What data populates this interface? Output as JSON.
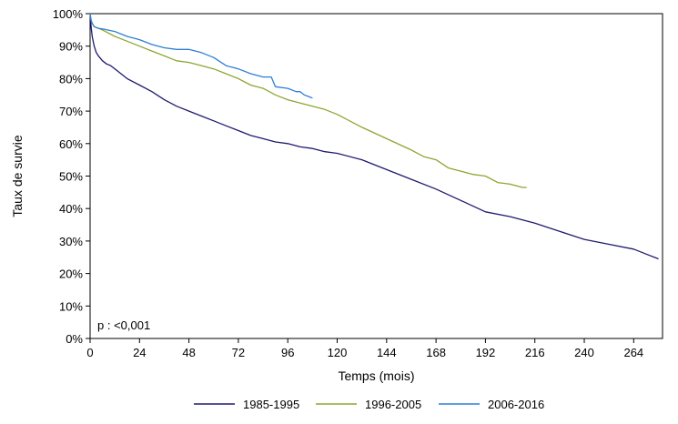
{
  "chart_data": {
    "type": "line",
    "xlabel": "Temps (mois)",
    "ylabel": "Taux de survie",
    "xlim": [
      0,
      278
    ],
    "ylim": [
      0,
      100
    ],
    "x_ticks": [
      0,
      24,
      48,
      72,
      96,
      120,
      144,
      168,
      192,
      216,
      240,
      264
    ],
    "y_ticks": [
      0,
      10,
      20,
      30,
      40,
      50,
      60,
      70,
      80,
      90,
      100
    ],
    "y_tick_labels": [
      "0%",
      "10%",
      "20%",
      "30%",
      "40%",
      "50%",
      "60%",
      "70%",
      "80%",
      "90%",
      "100%"
    ],
    "annotation": "p : <0,001",
    "legend_position": "bottom",
    "grid": false,
    "series": [
      {
        "name": "1985-1995",
        "color": "#1f1a6e",
        "x": [
          0,
          0.5,
          1,
          2,
          3,
          4,
          6,
          8,
          10,
          12,
          18,
          24,
          30,
          36,
          42,
          48,
          54,
          60,
          66,
          72,
          78,
          84,
          90,
          96,
          102,
          108,
          114,
          120,
          132,
          144,
          156,
          168,
          180,
          192,
          204,
          216,
          228,
          240,
          252,
          264,
          270,
          276
        ],
        "y": [
          100,
          96,
          93,
          90,
          88,
          87,
          85.5,
          84.5,
          84,
          83,
          80,
          78,
          76,
          73.5,
          71.5,
          70,
          68.5,
          67,
          65.5,
          64,
          62.5,
          61.5,
          60.5,
          60,
          59,
          58.5,
          57.5,
          57,
          55,
          52,
          49,
          46,
          42.5,
          39,
          37.5,
          35.5,
          33,
          30.5,
          29,
          27.5,
          26,
          24.5
        ]
      },
      {
        "name": "1996-2005",
        "color": "#8ca632",
        "x": [
          0,
          0.5,
          1,
          2,
          4,
          6,
          12,
          18,
          24,
          30,
          36,
          42,
          48,
          54,
          60,
          66,
          72,
          78,
          84,
          90,
          96,
          102,
          108,
          114,
          120,
          132,
          144,
          156,
          162,
          168,
          174,
          180,
          186,
          192,
          198,
          204,
          210,
          212
        ],
        "y": [
          100,
          98,
          97,
          96,
          95.5,
          95,
          93,
          91.5,
          90,
          88.5,
          87,
          85.5,
          85,
          84,
          83,
          81.5,
          80,
          78,
          77,
          75,
          73.5,
          72.5,
          71.5,
          70.5,
          69,
          65,
          61.5,
          58,
          56,
          55,
          52.5,
          51.5,
          50.5,
          50,
          48,
          47.5,
          46.5,
          46.5
        ]
      },
      {
        "name": "2006-2016",
        "color": "#2d7fd6",
        "x": [
          0,
          0.5,
          1,
          2,
          4,
          6,
          12,
          18,
          24,
          30,
          36,
          42,
          48,
          54,
          60,
          66,
          72,
          78,
          84,
          88,
          90,
          96,
          100,
          102,
          104,
          106,
          108
        ],
        "y": [
          100,
          98,
          97,
          96,
          95.5,
          95.3,
          94.5,
          93,
          92,
          90.5,
          89.5,
          89,
          89,
          88,
          86.5,
          84,
          83,
          81.5,
          80.5,
          80.5,
          77.5,
          77,
          76,
          76,
          75,
          74.5,
          74
        ]
      }
    ]
  }
}
